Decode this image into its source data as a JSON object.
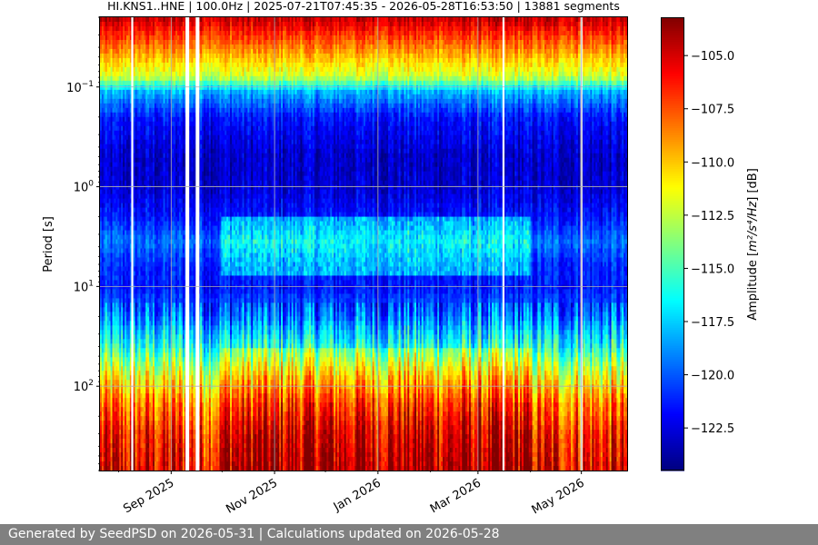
{
  "chart_data": {
    "type": "heatmap",
    "title": "HI.KNS1..HNE | 100.0Hz | 2025-07-21T07:45:35 - 2026-05-28T16:53:50 | 13881 segments",
    "ylabel": "Period [s]",
    "y_scale": "log",
    "y_inverted": true,
    "ylim": [
      0.02,
      700
    ],
    "y_ticks": [
      {
        "value": 0.1,
        "base": "10",
        "exp": "−1"
      },
      {
        "value": 1,
        "base": "10",
        "exp": "0"
      },
      {
        "value": 10,
        "base": "10",
        "exp": "1"
      },
      {
        "value": 100,
        "base": "10",
        "exp": "2"
      }
    ],
    "xlim": [
      "2025-07-21",
      "2026-05-28"
    ],
    "x_ticks": [
      {
        "date": "2025-09-01",
        "label": "Sep 2025"
      },
      {
        "date": "2025-11-01",
        "label": "Nov 2025"
      },
      {
        "date": "2026-01-01",
        "label": "Jan 2026"
      },
      {
        "date": "2026-03-01",
        "label": "Mar 2026"
      },
      {
        "date": "2026-05-01",
        "label": "May 2026"
      }
    ],
    "grid": true,
    "colorbar": {
      "label_prefix": "Amplitude [",
      "label_math": "m²/s⁴/Hz",
      "label_suffix": "] [dB]",
      "range": [
        -124.5,
        -103.2
      ],
      "ticks": [
        -105.0,
        -107.5,
        -110.0,
        -112.5,
        -115.0,
        -117.5,
        -120.0,
        -122.5
      ],
      "tick_labels": [
        "−105.0",
        "−107.5",
        "−110.0",
        "−112.5",
        "−115.0",
        "−117.5",
        "−120.0",
        "−122.5"
      ],
      "colormap": "jet"
    },
    "amplitude_profile": [
      {
        "period": 0.02,
        "db": -104.5
      },
      {
        "period": 0.04,
        "db": -108.5
      },
      {
        "period": 0.08,
        "db": -112.5
      },
      {
        "period": 0.11,
        "db": -118.0
      },
      {
        "period": 0.2,
        "db": -121.5
      },
      {
        "period": 0.5,
        "db": -123.0
      },
      {
        "period": 1.0,
        "db": -122.8
      },
      {
        "period": 2.0,
        "db": -121.5
      },
      {
        "period": 3.5,
        "db": -119.5
      },
      {
        "period": 6.0,
        "db": -121.0
      },
      {
        "period": 10,
        "db": -121.5
      },
      {
        "period": 20,
        "db": -119.5
      },
      {
        "period": 40,
        "db": -116.0
      },
      {
        "period": 80,
        "db": -111.5
      },
      {
        "period": 150,
        "db": -108.5
      },
      {
        "period": 300,
        "db": -106.5
      },
      {
        "period": 700,
        "db": -105.5
      }
    ],
    "data_gaps": [
      "2025-08-09",
      "2025-09-10",
      "2025-09-11",
      "2025-09-16",
      "2025-09-17",
      "2026-03-16",
      "2026-05-01"
    ]
  },
  "footer": {
    "text": "Generated by SeedPSD on 2026-05-31 | Calculations updated on 2026-05-28"
  }
}
